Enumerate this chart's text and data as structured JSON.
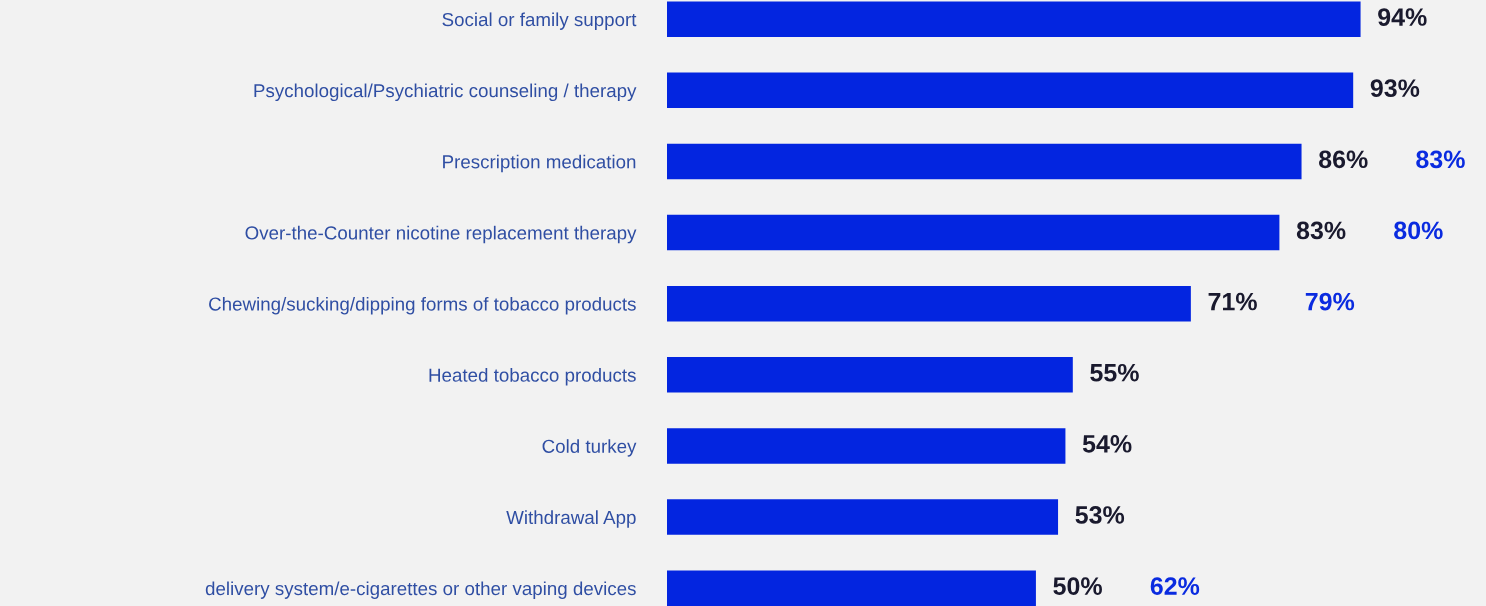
{
  "chart_data": {
    "type": "bar",
    "orientation": "horizontal",
    "categories": [
      "Social or family support",
      "Psychological/Psychiatric counseling / therapy",
      "Prescription medication",
      "Over-the-Counter nicotine replacement therapy",
      "Chewing/sucking/dipping forms of tobacco products",
      "Heated tobacco products",
      "Cold turkey",
      "Withdrawal App",
      "delivery system/e-cigarettes or other vaping devices"
    ],
    "values": [
      94,
      93,
      86,
      83,
      71,
      55,
      54,
      53,
      50
    ],
    "value_labels": [
      "94%",
      "93%",
      "86%",
      "83%",
      "71%",
      "55%",
      "54%",
      "53%",
      "50%"
    ],
    "color": "#0325e0",
    "xlim": [
      0,
      111
    ],
    "tick_labels": "y",
    "annotations": [
      "83%",
      "80%",
      "79%",
      "62%"
    ]
  }
}
